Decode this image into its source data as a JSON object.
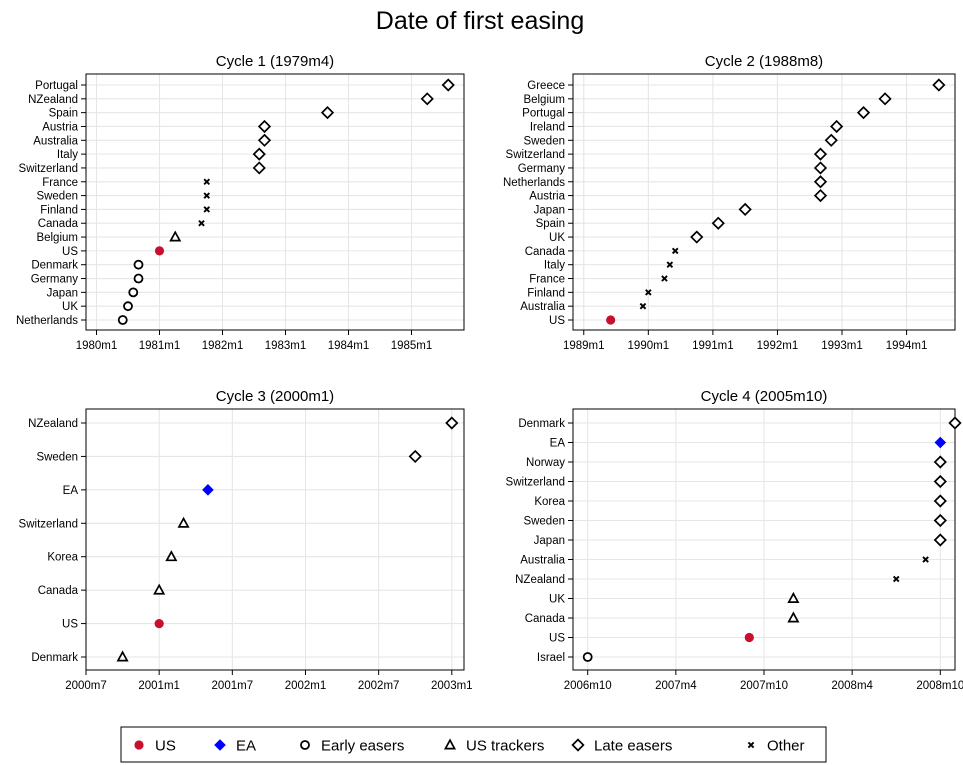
{
  "figure": {
    "title": "Date of first easing"
  },
  "colors": {
    "US": "#c8102e",
    "EA": "#0000ff",
    "marker": "#000000",
    "grid": "#e6e6e6",
    "axis": "#000000"
  },
  "legend": {
    "placement": "bottom",
    "items": [
      {
        "label": "US",
        "symbol": "circle-filled",
        "color": "#c8102e"
      },
      {
        "label": "EA",
        "symbol": "diamond-filled",
        "color": "#0000ff"
      },
      {
        "label": "Early easers",
        "symbol": "circle-open",
        "color": "#000000"
      },
      {
        "label": "US trackers",
        "symbol": "triangle-open",
        "color": "#000000"
      },
      {
        "label": "Late easers",
        "symbol": "diamond-open",
        "color": "#000000"
      },
      {
        "label": "Other",
        "symbol": "cross",
        "color": "#000000"
      }
    ]
  },
  "chart_data": [
    {
      "type": "scatter",
      "title": "Cycle 1 (1979m4)",
      "xlabel": "",
      "ylabel": "",
      "grid": true,
      "x_unit": "month",
      "xlim": [
        "1979m11",
        "1985m11"
      ],
      "x_ticks": [
        "1980m1",
        "1981m1",
        "1982m1",
        "1983m1",
        "1984m1",
        "1985m1"
      ],
      "points": [
        {
          "country": "Portugal",
          "date": "1985m8",
          "group": "Late easers"
        },
        {
          "country": "NZealand",
          "date": "1985m4",
          "group": "Late easers"
        },
        {
          "country": "Spain",
          "date": "1983m9",
          "group": "Late easers"
        },
        {
          "country": "Austria",
          "date": "1982m9",
          "group": "Late easers"
        },
        {
          "country": "Australia",
          "date": "1982m9",
          "group": "Late easers"
        },
        {
          "country": "Italy",
          "date": "1982m8",
          "group": "Late easers"
        },
        {
          "country": "Switzerland",
          "date": "1982m8",
          "group": "Late easers"
        },
        {
          "country": "France",
          "date": "1981m10",
          "group": "Other"
        },
        {
          "country": "Sweden",
          "date": "1981m10",
          "group": "Other"
        },
        {
          "country": "Finland",
          "date": "1981m10",
          "group": "Other"
        },
        {
          "country": "Canada",
          "date": "1981m9",
          "group": "Other"
        },
        {
          "country": "Belgium",
          "date": "1981m4",
          "group": "US trackers"
        },
        {
          "country": "US",
          "date": "1981m1",
          "group": "US"
        },
        {
          "country": "Denmark",
          "date": "1980m9",
          "group": "Early easers"
        },
        {
          "country": "Germany",
          "date": "1980m9",
          "group": "Early easers"
        },
        {
          "country": "Japan",
          "date": "1980m8",
          "group": "Early easers"
        },
        {
          "country": "UK",
          "date": "1980m7",
          "group": "Early easers"
        },
        {
          "country": "Netherlands",
          "date": "1980m6",
          "group": "Early easers"
        }
      ]
    },
    {
      "type": "scatter",
      "title": "Cycle 2 (1988m8)",
      "xlabel": "",
      "ylabel": "",
      "grid": true,
      "x_unit": "month",
      "xlim": [
        "1988m11",
        "1994m10"
      ],
      "x_ticks": [
        "1989m1",
        "1990m1",
        "1991m1",
        "1992m1",
        "1993m1",
        "1994m1"
      ],
      "points": [
        {
          "country": "Greece",
          "date": "1994m7",
          "group": "Late easers"
        },
        {
          "country": "Belgium",
          "date": "1993m9",
          "group": "Late easers"
        },
        {
          "country": "Portugal",
          "date": "1993m5",
          "group": "Late easers"
        },
        {
          "country": "Ireland",
          "date": "1992m12",
          "group": "Late easers"
        },
        {
          "country": "Sweden",
          "date": "1992m11",
          "group": "Late easers"
        },
        {
          "country": "Switzerland",
          "date": "1992m9",
          "group": "Late easers"
        },
        {
          "country": "Germany",
          "date": "1992m9",
          "group": "Late easers"
        },
        {
          "country": "Netherlands",
          "date": "1992m9",
          "group": "Late easers"
        },
        {
          "country": "Austria",
          "date": "1992m9",
          "group": "Late easers"
        },
        {
          "country": "Japan",
          "date": "1991m7",
          "group": "Late easers"
        },
        {
          "country": "Spain",
          "date": "1991m2",
          "group": "Late easers"
        },
        {
          "country": "UK",
          "date": "1990m10",
          "group": "Late easers"
        },
        {
          "country": "Canada",
          "date": "1990m6",
          "group": "Other"
        },
        {
          "country": "Italy",
          "date": "1990m5",
          "group": "Other"
        },
        {
          "country": "France",
          "date": "1990m4",
          "group": "Other"
        },
        {
          "country": "Finland",
          "date": "1990m1",
          "group": "Other"
        },
        {
          "country": "Australia",
          "date": "1989m12",
          "group": "Other"
        },
        {
          "country": "US",
          "date": "1989m6",
          "group": "US"
        }
      ]
    },
    {
      "type": "scatter",
      "title": "Cycle 3 (2000m1)",
      "xlabel": "",
      "ylabel": "",
      "grid": true,
      "x_unit": "month",
      "xlim": [
        "2000m7",
        "2003m2"
      ],
      "x_ticks": [
        "2000m7",
        "2001m1",
        "2001m7",
        "2002m1",
        "2002m7",
        "2003m1"
      ],
      "points": [
        {
          "country": "NZealand",
          "date": "2003m1",
          "group": "Late easers"
        },
        {
          "country": "Sweden",
          "date": "2002m10",
          "group": "Late easers"
        },
        {
          "country": "EA",
          "date": "2001m5",
          "group": "EA"
        },
        {
          "country": "Switzerland",
          "date": "2001m3",
          "group": "US trackers"
        },
        {
          "country": "Korea",
          "date": "2001m2",
          "group": "US trackers"
        },
        {
          "country": "Canada",
          "date": "2001m1",
          "group": "US trackers"
        },
        {
          "country": "US",
          "date": "2001m1",
          "group": "US"
        },
        {
          "country": "Denmark",
          "date": "2000m10",
          "group": "US trackers"
        }
      ]
    },
    {
      "type": "scatter",
      "title": "Cycle 4 (2005m10)",
      "xlabel": "",
      "ylabel": "",
      "grid": true,
      "x_unit": "month",
      "xlim": [
        "2006m9",
        "2008m11"
      ],
      "x_ticks": [
        "2006m10",
        "2007m4",
        "2007m10",
        "2008m4",
        "2008m10"
      ],
      "points": [
        {
          "country": "Denmark",
          "date": "2008m11",
          "group": "Late easers"
        },
        {
          "country": "EA",
          "date": "2008m10",
          "group": "EA"
        },
        {
          "country": "Norway",
          "date": "2008m10",
          "group": "Late easers"
        },
        {
          "country": "Switzerland",
          "date": "2008m10",
          "group": "Late easers"
        },
        {
          "country": "Korea",
          "date": "2008m10",
          "group": "Late easers"
        },
        {
          "country": "Sweden",
          "date": "2008m10",
          "group": "Late easers"
        },
        {
          "country": "Japan",
          "date": "2008m10",
          "group": "Late easers"
        },
        {
          "country": "Australia",
          "date": "2008m9",
          "group": "Other"
        },
        {
          "country": "NZealand",
          "date": "2008m7",
          "group": "Other"
        },
        {
          "country": "UK",
          "date": "2007m12",
          "group": "US trackers"
        },
        {
          "country": "Canada",
          "date": "2007m12",
          "group": "US trackers"
        },
        {
          "country": "US",
          "date": "2007m9",
          "group": "US"
        },
        {
          "country": "Israel",
          "date": "2006m10",
          "group": "Early easers"
        }
      ]
    }
  ]
}
